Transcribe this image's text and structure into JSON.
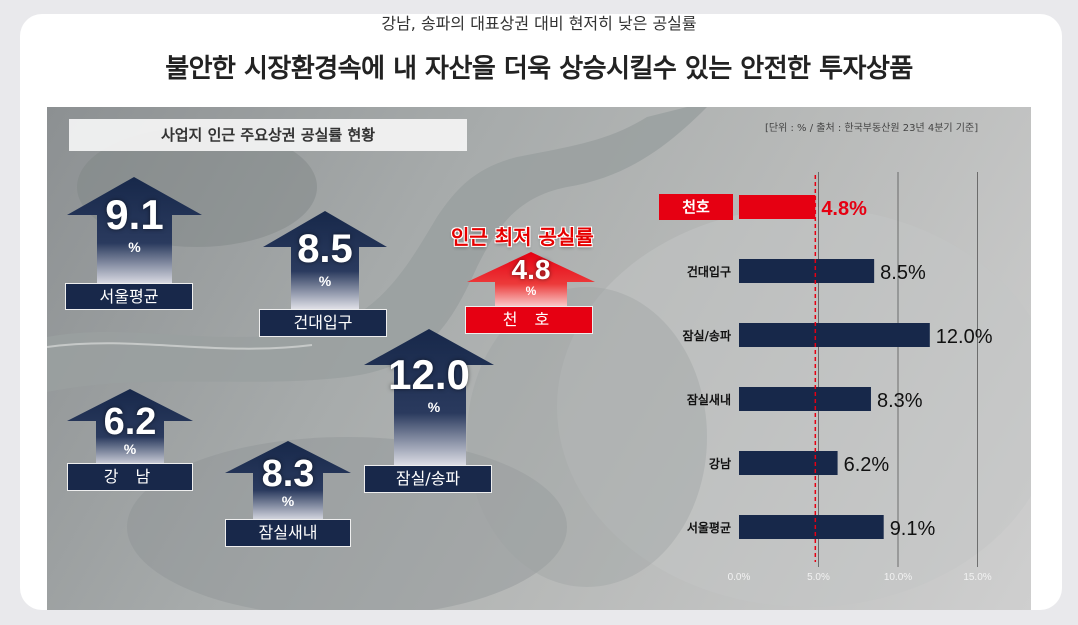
{
  "header": {
    "subtitle": "강남, 송파의 대표상권 대비 현저히 낮은 공실률",
    "title": "불안한 시장환경속에 내 자산을 더욱 상승시킬수 있는 안전한 투자상품"
  },
  "panel_title": "사업지 인근 주요상권 공실률 현황",
  "source_note": "[단위 : % / 출처 : 한국부동산원 23년 4분기 기준]",
  "callout": "인근 최저 공실률",
  "arrows": [
    {
      "label": "서울평균",
      "value": "9.1",
      "unit": "%",
      "highlight": false
    },
    {
      "label": "건대입구",
      "value": "8.5",
      "unit": "%",
      "highlight": false
    },
    {
      "label": "천 호",
      "value": "4.8",
      "unit": "%",
      "highlight": true
    },
    {
      "label": "강 남",
      "value": "6.2",
      "unit": "%",
      "highlight": false
    },
    {
      "label": "잠실새내",
      "value": "8.3",
      "unit": "%",
      "highlight": false
    },
    {
      "label": "잠실/송파",
      "value": "12.0",
      "unit": "%",
      "highlight": false
    }
  ],
  "colors": {
    "navy": "#17284a",
    "highlight": "#e60012",
    "line": "#e60012"
  },
  "chart_data": {
    "type": "bar",
    "orientation": "horizontal",
    "categories": [
      "천호",
      "건대입구",
      "잠실/송파",
      "잠실새내",
      "강남",
      "서울평균"
    ],
    "values": [
      4.8,
      8.5,
      12.0,
      8.3,
      6.2,
      9.1
    ],
    "value_labels": [
      "4.8%",
      "8.5%",
      "12.0%",
      "8.3%",
      "6.2%",
      "9.1%"
    ],
    "highlight_index": 0,
    "reference_line": 4.8,
    "xlim": [
      0,
      15
    ],
    "ticks": [
      "0.0%",
      "5.0%",
      "10.0%",
      "15.0%"
    ],
    "grid": true
  }
}
